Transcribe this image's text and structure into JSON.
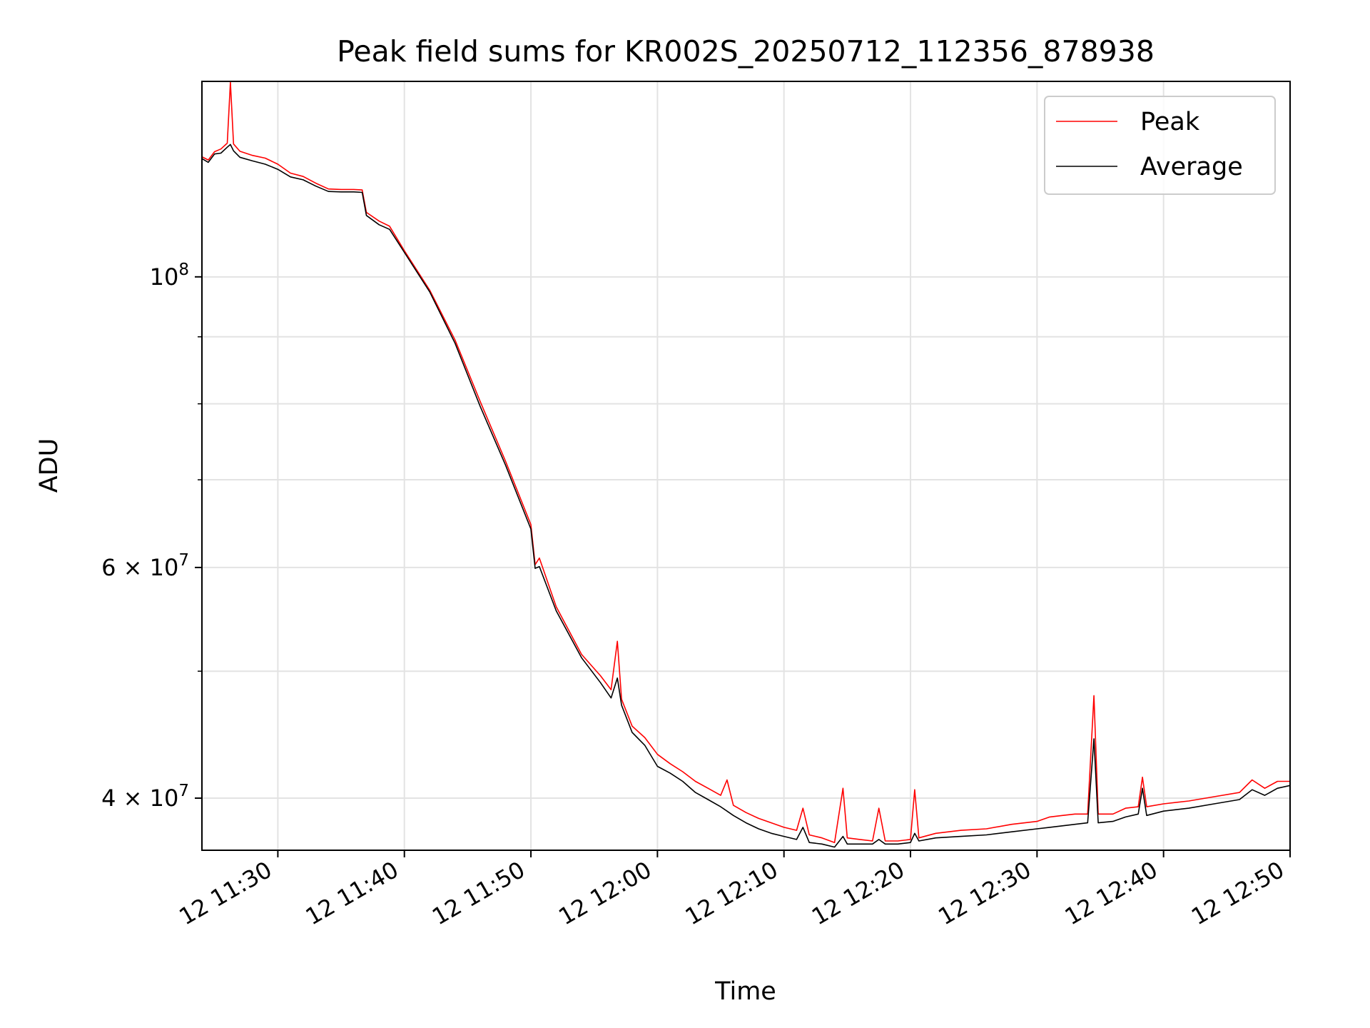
{
  "chart_data": {
    "type": "line",
    "title": "Peak field sums for KR002S_20250712_112356_878938",
    "xlabel": "Time",
    "ylabel": "ADU",
    "y_scale": "log",
    "xlim": [
      "2025-07-12 11:24",
      "2025-07-12 12:50"
    ],
    "ylim": [
      36500000,
      141000000
    ],
    "grid": true,
    "legend_position": "top-right",
    "x_ticks": [
      {
        "value": "2025-07-12 11:30",
        "label": "12 11:30"
      },
      {
        "value": "2025-07-12 11:40",
        "label": "12 11:40"
      },
      {
        "value": "2025-07-12 11:50",
        "label": "12 11:50"
      },
      {
        "value": "2025-07-12 12:00",
        "label": "12 12:00"
      },
      {
        "value": "2025-07-12 12:10",
        "label": "12 12:10"
      },
      {
        "value": "2025-07-12 12:20",
        "label": "12 12:20"
      },
      {
        "value": "2025-07-12 12:30",
        "label": "12 12:30"
      },
      {
        "value": "2025-07-12 12:40",
        "label": "12 12:40"
      },
      {
        "value": "2025-07-12 12:50",
        "label": "12 12:50"
      }
    ],
    "y_ticks": [
      {
        "value": 100000000,
        "base": "10",
        "exp": "8"
      },
      {
        "value": 60000000,
        "base": "6 × 10",
        "exp": "7"
      },
      {
        "value": 40000000,
        "base": "4 × 10",
        "exp": "7"
      }
    ],
    "y_minor_ticks": [
      50000000,
      70000000,
      80000000,
      90000000
    ],
    "series": [
      {
        "name": "Peak",
        "color": "#ff0000",
        "points": [
          [
            "2025-07-12 11:24:00",
            123500000
          ],
          [
            "2025-07-12 11:24:30",
            122800000
          ],
          [
            "2025-07-12 11:25:00",
            124600000
          ],
          [
            "2025-07-12 11:25:30",
            125200000
          ],
          [
            "2025-07-12 11:26:00",
            126500000
          ],
          [
            "2025-07-12 11:26:15",
            140800000
          ],
          [
            "2025-07-12 11:26:30",
            126300000
          ],
          [
            "2025-07-12 11:27:00",
            124700000
          ],
          [
            "2025-07-12 11:28:00",
            123800000
          ],
          [
            "2025-07-12 11:29:00",
            123200000
          ],
          [
            "2025-07-12 11:30:00",
            121900000
          ],
          [
            "2025-07-12 11:31:00",
            120000000
          ],
          [
            "2025-07-12 11:32:00",
            119300000
          ],
          [
            "2025-07-12 11:33:00",
            117900000
          ],
          [
            "2025-07-12 11:34:00",
            116700000
          ],
          [
            "2025-07-12 11:35:00",
            116600000
          ],
          [
            "2025-07-12 11:36:00",
            116600000
          ],
          [
            "2025-07-12 11:36:40",
            116500000
          ],
          [
            "2025-07-12 11:37:00",
            112000000
          ],
          [
            "2025-07-12 11:38:00",
            110300000
          ],
          [
            "2025-07-12 11:38:50",
            109300000
          ],
          [
            "2025-07-12 11:40:00",
            104700000
          ],
          [
            "2025-07-12 11:42:00",
            97700000
          ],
          [
            "2025-07-12 11:44:00",
            89500000
          ],
          [
            "2025-07-12 11:46:00",
            80300000
          ],
          [
            "2025-07-12 11:48:00",
            72300000
          ],
          [
            "2025-07-12 11:50:00",
            64700000
          ],
          [
            "2025-07-12 11:50:20",
            60300000
          ],
          [
            "2025-07-12 11:50:40",
            61000000
          ],
          [
            "2025-07-12 11:52:00",
            56000000
          ],
          [
            "2025-07-12 11:54:00",
            51500000
          ],
          [
            "2025-07-12 11:55:30",
            49600000
          ],
          [
            "2025-07-12 11:56:20",
            48400000
          ],
          [
            "2025-07-12 11:56:50",
            52700000
          ],
          [
            "2025-07-12 11:57:10",
            47600000
          ],
          [
            "2025-07-12 11:58:00",
            45400000
          ],
          [
            "2025-07-12 11:59:00",
            44500000
          ],
          [
            "2025-07-12 12:00:00",
            43200000
          ],
          [
            "2025-07-12 12:01:00",
            42500000
          ],
          [
            "2025-07-12 12:02:00",
            41900000
          ],
          [
            "2025-07-12 12:03:00",
            41200000
          ],
          [
            "2025-07-12 12:04:00",
            40700000
          ],
          [
            "2025-07-12 12:05:00",
            40200000
          ],
          [
            "2025-07-12 12:05:30",
            41300000
          ],
          [
            "2025-07-12 12:06:00",
            39500000
          ],
          [
            "2025-07-12 12:07:00",
            39000000
          ],
          [
            "2025-07-12 12:08:00",
            38600000
          ],
          [
            "2025-07-12 12:09:00",
            38300000
          ],
          [
            "2025-07-12 12:10:00",
            38000000
          ],
          [
            "2025-07-12 12:11:00",
            37800000
          ],
          [
            "2025-07-12 12:11:30",
            39300000
          ],
          [
            "2025-07-12 12:12:00",
            37500000
          ],
          [
            "2025-07-12 12:13:00",
            37300000
          ],
          [
            "2025-07-12 12:14:00",
            37000000
          ],
          [
            "2025-07-12 12:14:40",
            40700000
          ],
          [
            "2025-07-12 12:15:00",
            37300000
          ],
          [
            "2025-07-12 12:16:00",
            37200000
          ],
          [
            "2025-07-12 12:17:00",
            37100000
          ],
          [
            "2025-07-12 12:17:30",
            39300000
          ],
          [
            "2025-07-12 12:18:00",
            37100000
          ],
          [
            "2025-07-12 12:19:00",
            37100000
          ],
          [
            "2025-07-12 12:20:00",
            37200000
          ],
          [
            "2025-07-12 12:20:20",
            40600000
          ],
          [
            "2025-07-12 12:20:40",
            37300000
          ],
          [
            "2025-07-12 12:22:00",
            37600000
          ],
          [
            "2025-07-12 12:24:00",
            37800000
          ],
          [
            "2025-07-12 12:26:00",
            37900000
          ],
          [
            "2025-07-12 12:28:00",
            38200000
          ],
          [
            "2025-07-12 12:30:00",
            38400000
          ],
          [
            "2025-07-12 12:31:00",
            38700000
          ],
          [
            "2025-07-12 12:32:00",
            38800000
          ],
          [
            "2025-07-12 12:33:00",
            38900000
          ],
          [
            "2025-07-12 12:34:00",
            38900000
          ],
          [
            "2025-07-12 12:34:30",
            47900000
          ],
          [
            "2025-07-12 12:34:50",
            38900000
          ],
          [
            "2025-07-12 12:36:00",
            38900000
          ],
          [
            "2025-07-12 12:37:00",
            39300000
          ],
          [
            "2025-07-12 12:38:00",
            39400000
          ],
          [
            "2025-07-12 12:38:20",
            41500000
          ],
          [
            "2025-07-12 12:38:40",
            39400000
          ],
          [
            "2025-07-12 12:40:00",
            39600000
          ],
          [
            "2025-07-12 12:42:00",
            39800000
          ],
          [
            "2025-07-12 12:44:00",
            40100000
          ],
          [
            "2025-07-12 12:46:00",
            40400000
          ],
          [
            "2025-07-12 12:47:00",
            41300000
          ],
          [
            "2025-07-12 12:48:00",
            40700000
          ],
          [
            "2025-07-12 12:49:00",
            41200000
          ],
          [
            "2025-07-12 12:50:00",
            41200000
          ]
        ]
      },
      {
        "name": "Average",
        "color": "#000000",
        "points": [
          [
            "2025-07-12 11:24:00",
            123100000
          ],
          [
            "2025-07-12 11:24:30",
            122300000
          ],
          [
            "2025-07-12 11:25:00",
            124100000
          ],
          [
            "2025-07-12 11:25:30",
            124300000
          ],
          [
            "2025-07-12 11:26:00",
            125600000
          ],
          [
            "2025-07-12 11:26:15",
            126200000
          ],
          [
            "2025-07-12 11:26:30",
            124800000
          ],
          [
            "2025-07-12 11:27:00",
            123400000
          ],
          [
            "2025-07-12 11:28:00",
            122600000
          ],
          [
            "2025-07-12 11:29:00",
            121900000
          ],
          [
            "2025-07-12 11:30:00",
            120800000
          ],
          [
            "2025-07-12 11:31:00",
            119200000
          ],
          [
            "2025-07-12 11:32:00",
            118600000
          ],
          [
            "2025-07-12 11:33:00",
            117300000
          ],
          [
            "2025-07-12 11:34:00",
            116200000
          ],
          [
            "2025-07-12 11:35:00",
            116100000
          ],
          [
            "2025-07-12 11:36:00",
            116100000
          ],
          [
            "2025-07-12 11:36:40",
            116000000
          ],
          [
            "2025-07-12 11:37:00",
            111400000
          ],
          [
            "2025-07-12 11:38:00",
            109600000
          ],
          [
            "2025-07-12 11:38:50",
            108700000
          ],
          [
            "2025-07-12 11:40:00",
            104400000
          ],
          [
            "2025-07-12 11:42:00",
            97400000
          ],
          [
            "2025-07-12 11:44:00",
            89000000
          ],
          [
            "2025-07-12 11:46:00",
            79600000
          ],
          [
            "2025-07-12 11:48:00",
            71800000
          ],
          [
            "2025-07-12 11:50:00",
            64200000
          ],
          [
            "2025-07-12 11:50:20",
            59900000
          ],
          [
            "2025-07-12 11:50:40",
            60100000
          ],
          [
            "2025-07-12 11:52:00",
            55600000
          ],
          [
            "2025-07-12 11:54:00",
            51200000
          ],
          [
            "2025-07-12 11:55:30",
            49000000
          ],
          [
            "2025-07-12 11:56:20",
            47700000
          ],
          [
            "2025-07-12 11:56:50",
            49400000
          ],
          [
            "2025-07-12 11:57:10",
            47100000
          ],
          [
            "2025-07-12 11:58:00",
            44900000
          ],
          [
            "2025-07-12 11:59:00",
            43900000
          ],
          [
            "2025-07-12 12:00:00",
            42300000
          ],
          [
            "2025-07-12 12:01:00",
            41800000
          ],
          [
            "2025-07-12 12:02:00",
            41200000
          ],
          [
            "2025-07-12 12:03:00",
            40400000
          ],
          [
            "2025-07-12 12:04:00",
            39900000
          ],
          [
            "2025-07-12 12:05:00",
            39400000
          ],
          [
            "2025-07-12 12:05:30",
            39100000
          ],
          [
            "2025-07-12 12:06:00",
            38800000
          ],
          [
            "2025-07-12 12:07:00",
            38300000
          ],
          [
            "2025-07-12 12:08:00",
            37900000
          ],
          [
            "2025-07-12 12:09:00",
            37600000
          ],
          [
            "2025-07-12 12:10:00",
            37400000
          ],
          [
            "2025-07-12 12:11:00",
            37200000
          ],
          [
            "2025-07-12 12:11:30",
            38000000
          ],
          [
            "2025-07-12 12:12:00",
            37000000
          ],
          [
            "2025-07-12 12:13:00",
            36900000
          ],
          [
            "2025-07-12 12:14:00",
            36700000
          ],
          [
            "2025-07-12 12:14:40",
            37400000
          ],
          [
            "2025-07-12 12:15:00",
            36900000
          ],
          [
            "2025-07-12 12:16:00",
            36900000
          ],
          [
            "2025-07-12 12:17:00",
            36900000
          ],
          [
            "2025-07-12 12:17:30",
            37200000
          ],
          [
            "2025-07-12 12:18:00",
            36900000
          ],
          [
            "2025-07-12 12:19:00",
            36900000
          ],
          [
            "2025-07-12 12:20:00",
            37000000
          ],
          [
            "2025-07-12 12:20:20",
            37600000
          ],
          [
            "2025-07-12 12:20:40",
            37100000
          ],
          [
            "2025-07-12 12:22:00",
            37300000
          ],
          [
            "2025-07-12 12:24:00",
            37400000
          ],
          [
            "2025-07-12 12:26:00",
            37500000
          ],
          [
            "2025-07-12 12:28:00",
            37700000
          ],
          [
            "2025-07-12 12:30:00",
            37900000
          ],
          [
            "2025-07-12 12:31:00",
            38000000
          ],
          [
            "2025-07-12 12:32:00",
            38100000
          ],
          [
            "2025-07-12 12:33:00",
            38200000
          ],
          [
            "2025-07-12 12:34:00",
            38300000
          ],
          [
            "2025-07-12 12:34:30",
            44400000
          ],
          [
            "2025-07-12 12:34:50",
            38300000
          ],
          [
            "2025-07-12 12:36:00",
            38400000
          ],
          [
            "2025-07-12 12:37:00",
            38700000
          ],
          [
            "2025-07-12 12:38:00",
            38900000
          ],
          [
            "2025-07-12 12:38:20",
            40700000
          ],
          [
            "2025-07-12 12:38:40",
            38800000
          ],
          [
            "2025-07-12 12:40:00",
            39100000
          ],
          [
            "2025-07-12 12:42:00",
            39300000
          ],
          [
            "2025-07-12 12:44:00",
            39600000
          ],
          [
            "2025-07-12 12:46:00",
            39900000
          ],
          [
            "2025-07-12 12:47:00",
            40600000
          ],
          [
            "2025-07-12 12:48:00",
            40200000
          ],
          [
            "2025-07-12 12:49:00",
            40700000
          ],
          [
            "2025-07-12 12:50:00",
            40900000
          ]
        ]
      }
    ]
  }
}
